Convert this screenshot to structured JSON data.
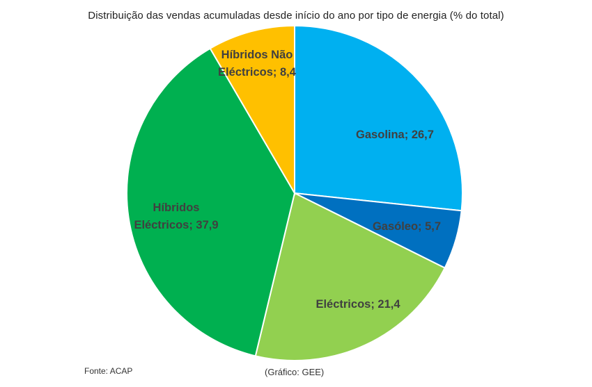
{
  "chart_data": {
    "type": "pie",
    "title": "Distribuição das vendas acumuladas desde início do ano por tipo de energia (% do total)",
    "slices": [
      {
        "label": "Gasolina; 26,7",
        "value": 26.7,
        "color": "#00B0F0"
      },
      {
        "label": "Gasóleo; 5,7",
        "value": 5.7,
        "color": "#0070C0"
      },
      {
        "label": "Eléctricos; 21,4",
        "value": 21.4,
        "color": "#92D050"
      },
      {
        "label_lines": [
          "Híbridos",
          "Eléctricos; 37,9"
        ],
        "value": 37.9,
        "color": "#00B050"
      },
      {
        "label_lines": [
          "Híbridos Não",
          "Eléctricos; 8,4"
        ],
        "value": 8.4,
        "color": "#FFC000"
      }
    ]
  },
  "footer": {
    "source": "Fonte: ACAP",
    "credit": "(Gráfico: GEE)"
  }
}
